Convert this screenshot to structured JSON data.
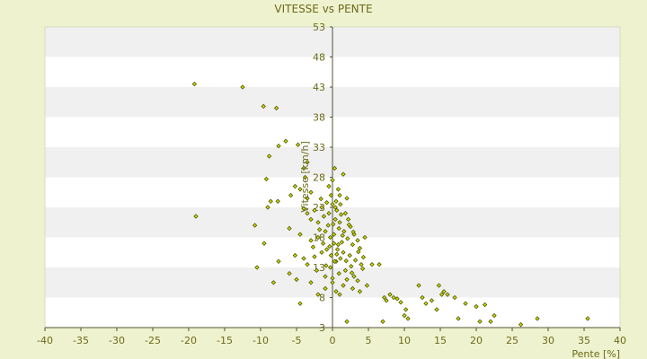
{
  "chart_data": {
    "type": "scatter",
    "title": "VITESSE vs PENTE",
    "xlabel": "Pente [%]",
    "ylabel": "Vitesse [km/h]",
    "xlim": [
      -40,
      40
    ],
    "ylim": [
      3,
      53
    ],
    "x_ticks": [
      -40,
      -35,
      -30,
      -25,
      -20,
      -15,
      -10,
      -5,
      0,
      5,
      10,
      15,
      20,
      25,
      30,
      35,
      40
    ],
    "y_ticks": [
      3,
      8,
      13,
      18,
      23,
      28,
      33,
      38,
      43,
      48,
      53
    ],
    "grid": "horizontal-bands",
    "legend": "none",
    "colors": {
      "background": "#eef2cf",
      "band_light": "#ffffff",
      "band_dark": "#f0f0f0",
      "marker_fill": "#d8d800",
      "marker_stroke": "#4a5a00",
      "axis": "#555533",
      "text": "#6b6b1a"
    },
    "points": [
      [
        -19.2,
        43.5
      ],
      [
        -12.5,
        43.0
      ],
      [
        -9.6,
        39.8
      ],
      [
        -7.8,
        39.5
      ],
      [
        -6.5,
        34.0
      ],
      [
        -7.5,
        33.2
      ],
      [
        -4.8,
        33.4
      ],
      [
        -8.8,
        31.5
      ],
      [
        -3.5,
        30.5
      ],
      [
        -4.0,
        29.5
      ],
      [
        -9.2,
        27.7
      ],
      [
        -3.8,
        28.0
      ],
      [
        -5.2,
        26.5
      ],
      [
        -4.5,
        26.0
      ],
      [
        -3.0,
        25.5
      ],
      [
        -5.8,
        25.0
      ],
      [
        -3.5,
        24.5
      ],
      [
        -8.6,
        24.0
      ],
      [
        -7.6,
        24.0
      ],
      [
        -9.0,
        23.0
      ],
      [
        -4.0,
        22.8
      ],
      [
        -3.5,
        22.0
      ],
      [
        -2.5,
        22.5
      ],
      [
        -1.5,
        23.0
      ],
      [
        -19.0,
        21.5
      ],
      [
        -6.0,
        19.5
      ],
      [
        -3.0,
        21.0
      ],
      [
        -2.0,
        20.5
      ],
      [
        -1.2,
        21.5
      ],
      [
        -0.5,
        22.0
      ],
      [
        0.0,
        23.5
      ],
      [
        0.5,
        24.0
      ],
      [
        -10.8,
        20.0
      ],
      [
        -9.5,
        17.0
      ],
      [
        -4.5,
        18.5
      ],
      [
        -3.0,
        17.5
      ],
      [
        -2.0,
        18.0
      ],
      [
        -1.0,
        19.0
      ],
      [
        0.2,
        18.5
      ],
      [
        1.0,
        20.5
      ],
      [
        -10.5,
        13.0
      ],
      [
        -7.5,
        14.0
      ],
      [
        -5.2,
        15.0
      ],
      [
        -4.0,
        14.5
      ],
      [
        -3.5,
        13.5
      ],
      [
        -2.5,
        14.8
      ],
      [
        -1.5,
        15.5
      ],
      [
        -0.8,
        16.0
      ],
      [
        -8.2,
        10.5
      ],
      [
        -6.0,
        12.0
      ],
      [
        -5.0,
        11.0
      ],
      [
        -3.0,
        10.5
      ],
      [
        -2.2,
        12.5
      ],
      [
        -1.0,
        11.5
      ],
      [
        -0.3,
        13.0
      ],
      [
        0.5,
        14.0
      ],
      [
        -4.5,
        7.0
      ],
      [
        -2.0,
        8.5
      ],
      [
        -1.0,
        9.5
      ],
      [
        0.0,
        10.5
      ],
      [
        1.5,
        28.5
      ],
      [
        0.0,
        27.5
      ],
      [
        -0.5,
        26.5
      ],
      [
        0.8,
        26.0
      ],
      [
        0.3,
        29.5
      ],
      [
        1.0,
        25.0
      ],
      [
        2.0,
        24.5
      ],
      [
        -0.2,
        25.0
      ],
      [
        0.6,
        22.5
      ],
      [
        1.2,
        21.8
      ],
      [
        1.8,
        22.0
      ],
      [
        2.2,
        21.0
      ],
      [
        0.4,
        21.0
      ],
      [
        -0.6,
        20.0
      ],
      [
        0.9,
        19.5
      ],
      [
        1.6,
        19.0
      ],
      [
        2.5,
        19.8
      ],
      [
        3.0,
        18.5
      ],
      [
        2.1,
        17.8
      ],
      [
        1.3,
        17.2
      ],
      [
        0.2,
        17.0
      ],
      [
        -0.4,
        16.5
      ],
      [
        0.7,
        16.0
      ],
      [
        1.5,
        15.5
      ],
      [
        2.8,
        16.8
      ],
      [
        3.5,
        17.5
      ],
      [
        4.5,
        18.0
      ],
      [
        3.8,
        16.2
      ],
      [
        2.4,
        15.0
      ],
      [
        1.1,
        14.5
      ],
      [
        0.3,
        14.0
      ],
      [
        -0.2,
        15.0
      ],
      [
        3.2,
        14.2
      ],
      [
        4.0,
        13.5
      ],
      [
        4.2,
        12.8
      ],
      [
        2.6,
        13.2
      ],
      [
        1.8,
        12.5
      ],
      [
        0.9,
        12.0
      ],
      [
        3.0,
        11.5
      ],
      [
        5.5,
        13.5
      ],
      [
        2.0,
        11.0
      ],
      [
        3.5,
        10.8
      ],
      [
        4.8,
        10.0
      ],
      [
        1.5,
        10.0
      ],
      [
        0.5,
        9.0
      ],
      [
        1.0,
        8.5
      ],
      [
        2.8,
        9.5
      ],
      [
        3.8,
        9.0
      ],
      [
        6.5,
        13.5
      ],
      [
        7.2,
        8.0
      ],
      [
        7.5,
        7.5
      ],
      [
        8.0,
        8.5
      ],
      [
        8.5,
        8.0
      ],
      [
        9.0,
        7.8
      ],
      [
        9.5,
        7.2
      ],
      [
        10.2,
        6.0
      ],
      [
        10.0,
        5.0
      ],
      [
        10.5,
        4.5
      ],
      [
        7.0,
        4.0
      ],
      [
        2.0,
        4.0
      ],
      [
        12.0,
        10.0
      ],
      [
        12.5,
        8.0
      ],
      [
        13.0,
        7.0
      ],
      [
        13.8,
        7.5
      ],
      [
        14.5,
        6.0
      ],
      [
        14.8,
        10.0
      ],
      [
        15.2,
        8.5
      ],
      [
        15.5,
        9.0
      ],
      [
        16.0,
        8.5
      ],
      [
        17.0,
        8.0
      ],
      [
        17.5,
        4.5
      ],
      [
        18.5,
        7.0
      ],
      [
        20.0,
        6.5
      ],
      [
        20.5,
        4.0
      ],
      [
        21.2,
        6.8
      ],
      [
        22.0,
        4.0
      ],
      [
        22.5,
        5.0
      ],
      [
        26.2,
        3.5
      ],
      [
        28.5,
        4.5
      ],
      [
        35.5,
        4.5
      ],
      [
        -0.8,
        23.8
      ],
      [
        0.1,
        20.2
      ],
      [
        -1.8,
        19.3
      ],
      [
        2.3,
        20.1
      ],
      [
        1.4,
        18.3
      ],
      [
        -2.7,
        16.4
      ],
      [
        0.6,
        15.2
      ],
      [
        1.9,
        14.1
      ],
      [
        -0.9,
        13.3
      ],
      [
        2.7,
        12.1
      ],
      [
        0.0,
        11.2
      ],
      [
        -1.6,
        24.4
      ],
      [
        0.4,
        23.0
      ],
      [
        1.1,
        23.5
      ],
      [
        -0.3,
        18.0
      ],
      [
        2.9,
        18.9
      ],
      [
        3.6,
        15.6
      ],
      [
        4.3,
        14.7
      ],
      [
        -1.3,
        17.0
      ],
      [
        0.8,
        16.8
      ]
    ]
  }
}
